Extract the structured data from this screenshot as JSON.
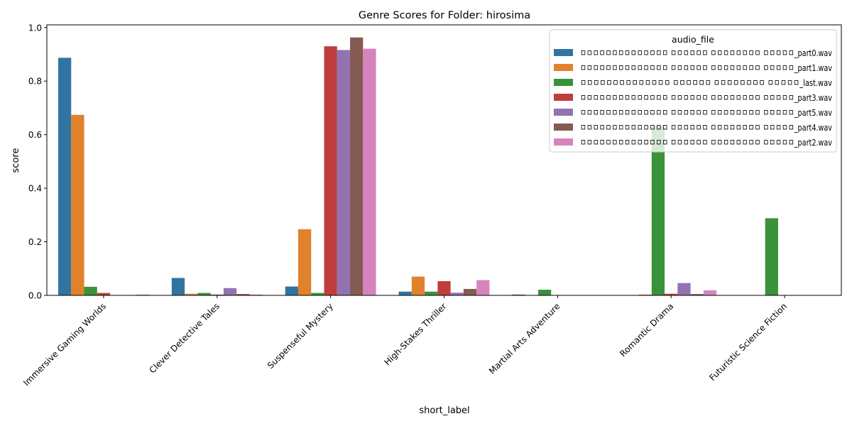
{
  "chart_data": {
    "type": "bar",
    "title": "Genre Scores for Folder: hirosima",
    "xlabel": "short_label",
    "ylabel": "score",
    "ylim": [
      0,
      1.01
    ],
    "yticks": [
      0.0,
      0.2,
      0.4,
      0.6,
      0.8,
      1.0
    ],
    "ytick_labels": [
      "0.0",
      "0.2",
      "0.4",
      "0.6",
      "0.8",
      "1.0"
    ],
    "grid": false,
    "legend_title": "audio_file",
    "legend_position": "top-right",
    "categories": [
      "Immersive Gaming Worlds",
      "Clever Detective Tales",
      "Suspenseful Mystery",
      "High-Stakes Thriller",
      "Martial Arts Adventure",
      "Romantic Drama",
      "Futuristic Science Fiction"
    ],
    "series": [
      {
        "name": "ㅁㅁㅁㅁㅁㅁㅁㅁㅁㅁㅁㅁㅁㅁ ㅁㅁㅁㅁㅁㅁ  ㅁㅁㅁㅁㅁㅁㅁㅁ ㅁㅁㅁㅁㅁ_part0.wav",
        "color": "#3274a1",
        "values": [
          0.887,
          0.065,
          0.033,
          0.014,
          0.003,
          0.0,
          0.0
        ]
      },
      {
        "name": "ㅁㅁㅁㅁㅁㅁㅁㅁㅁㅁㅁㅁㅁㅁ ㅁㅁㅁㅁㅁㅁ  ㅁㅁㅁㅁㅁㅁㅁㅁ ㅁㅁㅁㅁㅁ_part1.wav",
        "color": "#e1812c",
        "values": [
          0.674,
          0.006,
          0.247,
          0.07,
          0.0,
          0.003,
          0.0
        ]
      },
      {
        "name": "ㅁㅁㅁㅁㅁㅁㅁㅁㅁㅁㅁㅁㅁㅁ ㅁㅁㅁㅁㅁㅁ  ㅁㅁㅁㅁㅁㅁㅁㅁ ㅁㅁㅁㅁㅁ_last.wav",
        "color": "#3a923a",
        "values": [
          0.032,
          0.009,
          0.009,
          0.014,
          0.021,
          0.632,
          0.288
        ]
      },
      {
        "name": "ㅁㅁㅁㅁㅁㅁㅁㅁㅁㅁㅁㅁㅁㅁ ㅁㅁㅁㅁㅁㅁ  ㅁㅁㅁㅁㅁㅁㅁㅁ ㅁㅁㅁㅁㅁ_part3.wav",
        "color": "#c03d3e",
        "values": [
          0.009,
          0.003,
          0.93,
          0.053,
          0.0,
          0.006,
          0.0
        ]
      },
      {
        "name": "ㅁㅁㅁㅁㅁㅁㅁㅁㅁㅁㅁㅁㅁㅁ ㅁㅁㅁㅁㅁㅁ  ㅁㅁㅁㅁㅁㅁㅁㅁ ㅁㅁㅁㅁㅁ_part5.wav",
        "color": "#9372b2",
        "values": [
          0.0,
          0.027,
          0.916,
          0.01,
          0.0,
          0.046,
          0.0
        ]
      },
      {
        "name": "ㅁㅁㅁㅁㅁㅁㅁㅁㅁㅁㅁㅁㅁㅁ ㅁㅁㅁㅁㅁㅁ  ㅁㅁㅁㅁㅁㅁㅁㅁ ㅁㅁㅁㅁㅁ_part4.wav",
        "color": "#845b53",
        "values": [
          0.0,
          0.005,
          0.963,
          0.024,
          0.0,
          0.005,
          0.0
        ]
      },
      {
        "name": "ㅁㅁㅁㅁㅁㅁㅁㅁㅁㅁㅁㅁㅁㅁ ㅁㅁㅁㅁㅁㅁ  ㅁㅁㅁㅁㅁㅁㅁㅁ ㅁㅁㅁㅁㅁ_part2.wav",
        "color": "#d684bd",
        "values": [
          0.003,
          0.003,
          0.921,
          0.057,
          0.0,
          0.019,
          0.0
        ]
      }
    ]
  }
}
